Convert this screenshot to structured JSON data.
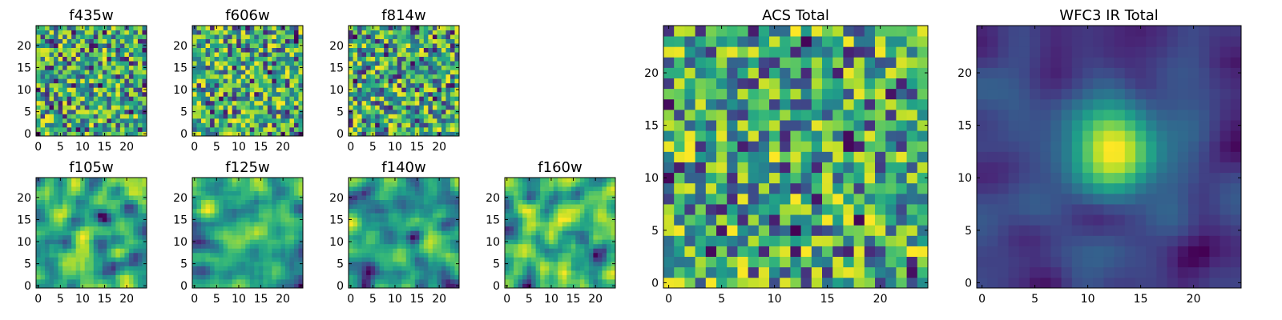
{
  "chart_data": [
    {
      "type": "heatmap",
      "title": "f435w",
      "grid": "25x25",
      "xlim": [
        -0.5,
        24.5
      ],
      "ylim": [
        -0.5,
        24.5
      ],
      "xticks": [
        0,
        5,
        10,
        15,
        20
      ],
      "yticks": [
        0,
        5,
        10,
        15,
        20
      ],
      "colormap": "viridis",
      "seed": 11,
      "smooth": 0
    },
    {
      "type": "heatmap",
      "title": "f606w",
      "grid": "25x25",
      "xlim": [
        -0.5,
        24.5
      ],
      "ylim": [
        -0.5,
        24.5
      ],
      "xticks": [
        0,
        5,
        10,
        15,
        20
      ],
      "yticks": [
        0,
        5,
        10,
        15,
        20
      ],
      "colormap": "viridis",
      "seed": 23,
      "smooth": 0
    },
    {
      "type": "heatmap",
      "title": "f814w",
      "grid": "25x25",
      "xlim": [
        -0.5,
        24.5
      ],
      "ylim": [
        -0.5,
        24.5
      ],
      "xticks": [
        0,
        5,
        10,
        15,
        20
      ],
      "yticks": [
        0,
        5,
        10,
        15,
        20
      ],
      "colormap": "viridis",
      "seed": 37,
      "smooth": 0
    },
    {
      "type": "heatmap",
      "title": "f105w",
      "grid": "25x25",
      "xlim": [
        -0.5,
        24.5
      ],
      "ylim": [
        -0.5,
        24.5
      ],
      "xticks": [
        0,
        5,
        10,
        15,
        20
      ],
      "yticks": [
        0,
        5,
        10,
        15,
        20
      ],
      "colormap": "viridis",
      "seed": 41,
      "smooth": 2
    },
    {
      "type": "heatmap",
      "title": "f125w",
      "grid": "25x25",
      "xlim": [
        -0.5,
        24.5
      ],
      "ylim": [
        -0.5,
        24.5
      ],
      "xticks": [
        0,
        5,
        10,
        15,
        20
      ],
      "yticks": [
        0,
        5,
        10,
        15,
        20
      ],
      "colormap": "viridis",
      "seed": 53,
      "smooth": 2
    },
    {
      "type": "heatmap",
      "title": "f140w",
      "grid": "25x25",
      "xlim": [
        -0.5,
        24.5
      ],
      "ylim": [
        -0.5,
        24.5
      ],
      "xticks": [
        0,
        5,
        10,
        15,
        20
      ],
      "yticks": [
        0,
        5,
        10,
        15,
        20
      ],
      "colormap": "viridis",
      "seed": 67,
      "smooth": 2
    },
    {
      "type": "heatmap",
      "title": "f160w",
      "grid": "25x25",
      "xlim": [
        -0.5,
        24.5
      ],
      "ylim": [
        -0.5,
        24.5
      ],
      "xticks": [
        0,
        5,
        10,
        15,
        20
      ],
      "yticks": [
        0,
        5,
        10,
        15,
        20
      ],
      "colormap": "viridis",
      "seed": 71,
      "smooth": 2
    },
    {
      "type": "heatmap",
      "title": "ACS Total",
      "grid": "25x25",
      "xlim": [
        -0.5,
        24.5
      ],
      "ylim": [
        -0.5,
        24.5
      ],
      "xticks": [
        0,
        5,
        10,
        15,
        20
      ],
      "yticks": [
        0,
        5,
        10,
        15,
        20
      ],
      "colormap": "viridis",
      "seed": 83,
      "smooth": 0
    },
    {
      "type": "heatmap",
      "title": "WFC3 IR Total",
      "grid": "25x25",
      "xlim": [
        -0.5,
        24.5
      ],
      "ylim": [
        -0.5,
        24.5
      ],
      "xticks": [
        0,
        5,
        10,
        15,
        20
      ],
      "yticks": [
        0,
        5,
        10,
        15,
        20
      ],
      "colormap": "viridis",
      "seed": 97,
      "smooth": 3,
      "peak": {
        "x": 12.5,
        "y": 12.5,
        "amplitude": 1.3,
        "sigma": 2.6
      }
    }
  ]
}
